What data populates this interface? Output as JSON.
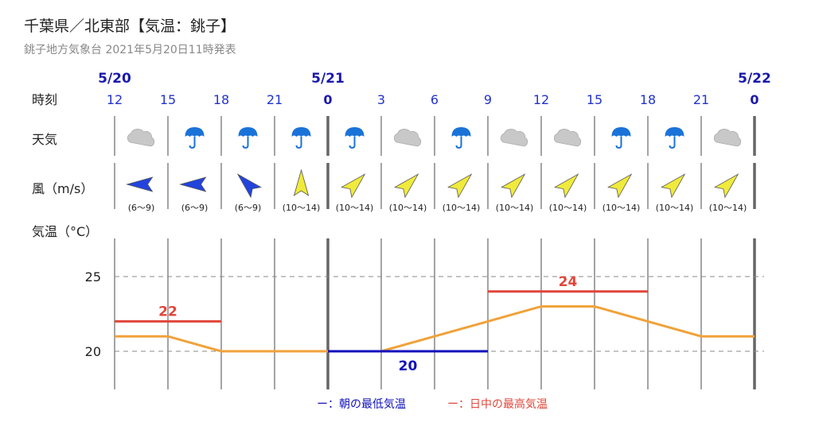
{
  "header": {
    "title": "千葉県／北東部【気温：銚子】",
    "subtitle": "銚子地方気象台 2021年5月20日11時発表"
  },
  "rows": {
    "time_label": "時刻",
    "weather_label": "天気",
    "wind_label": "風（m/s）",
    "temp_label": "気温（°C）"
  },
  "dates": [
    {
      "label": "5/20",
      "col": 0
    },
    {
      "label": "5/21",
      "col": 4
    },
    {
      "label": "5/22",
      "col": 12
    }
  ],
  "hours": [
    "12",
    "15",
    "18",
    "21",
    "0",
    "3",
    "6",
    "9",
    "12",
    "15",
    "18",
    "21",
    "0"
  ],
  "weather": [
    "cloudy-icon",
    "umbrella-icon",
    "umbrella-icon",
    "umbrella-icon",
    "umbrella-icon",
    "cloudy-icon",
    "umbrella-icon",
    "cloudy-icon",
    "cloudy-icon",
    "umbrella-icon",
    "umbrella-icon",
    "cloudy-icon"
  ],
  "wind": [
    {
      "dir": "W",
      "range": "(6～9)",
      "level": "low"
    },
    {
      "dir": "W",
      "range": "(6～9)",
      "level": "low"
    },
    {
      "dir": "NW",
      "range": "(6～9)",
      "level": "low"
    },
    {
      "dir": "S",
      "range": "(10～14)",
      "level": "mid"
    },
    {
      "dir": "SW",
      "range": "(10～14)",
      "level": "mid"
    },
    {
      "dir": "SW",
      "range": "(10～14)",
      "level": "mid"
    },
    {
      "dir": "SW",
      "range": "(10～14)",
      "level": "mid"
    },
    {
      "dir": "SW",
      "range": "(10～14)",
      "level": "mid"
    },
    {
      "dir": "SW",
      "range": "(10～14)",
      "level": "mid"
    },
    {
      "dir": "SW",
      "range": "(10～14)",
      "level": "mid"
    },
    {
      "dir": "SW",
      "range": "(10～14)",
      "level": "mid"
    },
    {
      "dir": "SW",
      "range": "(10～14)",
      "level": "mid"
    }
  ],
  "colors": {
    "date_blue": "#1a1aaa",
    "hour_blue": "#2233cc",
    "wind_low": "#2244dd",
    "wind_mid": "#f0ea3c",
    "temp_line": "#f0a23a",
    "min_line": "#1111bb",
    "max_line": "#e0463a",
    "umbrella": "#1a73d8",
    "cloud": "#c8c8c8"
  },
  "chart_data": {
    "type": "line",
    "x": [
      "12",
      "15",
      "18",
      "21",
      "0",
      "3",
      "6",
      "9",
      "12",
      "15",
      "18",
      "21",
      "0"
    ],
    "series": [
      {
        "values": [
          21,
          21,
          20,
          20,
          20,
          20,
          21,
          22,
          23,
          23,
          22,
          21,
          21
        ]
      }
    ],
    "min_temp": {
      "value": 20,
      "label": "20",
      "from": 4,
      "to": 7
    },
    "max_temps": [
      {
        "value": 22,
        "label": "22",
        "from": 0,
        "to": 2
      },
      {
        "value": 24,
        "label": "24",
        "from": 7,
        "to": 10
      }
    ],
    "yticks": [
      "25",
      "20"
    ],
    "ylim": [
      17.5,
      27.5
    ],
    "grid": true
  },
  "legend": {
    "min_label": "ー：朝の最低気温",
    "max_label": "ー：日中の最高気温"
  }
}
